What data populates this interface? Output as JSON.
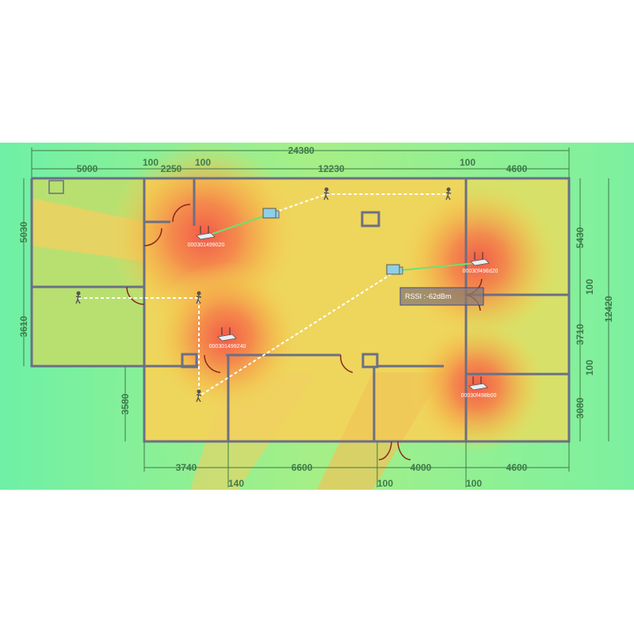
{
  "colors": {
    "strong": "#f25a4a",
    "medium": "#f5a444",
    "weak": "#f0d85a",
    "poor": "#6ef0a6",
    "wall": "#6b6f86",
    "dimension": "#3f7a4a"
  },
  "dimensions": {
    "top_total": "24380",
    "top": [
      "5000",
      "100",
      "2250",
      "100",
      "12230",
      "100",
      "4600"
    ],
    "left": [
      "5030",
      "3610",
      "3580"
    ],
    "right": [
      "5430",
      "100",
      "3710",
      "100",
      "3080",
      "12420"
    ],
    "bottom": [
      "3740",
      "6600",
      "4000",
      "4600"
    ],
    "bottom_gaps": [
      "140",
      "100",
      "100"
    ]
  },
  "access_points": [
    {
      "label": "000301499020",
      "icon": "router-icon"
    },
    {
      "label": "00030f498d20",
      "icon": "router-icon"
    },
    {
      "label": "000301499240",
      "icon": "router-icon"
    },
    {
      "label": "00030f498b00",
      "icon": "router-icon"
    }
  ],
  "tooltip": {
    "label": "RSSI :",
    "value": "-62dBm"
  },
  "icons": {
    "person": "person-walking-icon",
    "client": "laptop-phone-icon"
  }
}
